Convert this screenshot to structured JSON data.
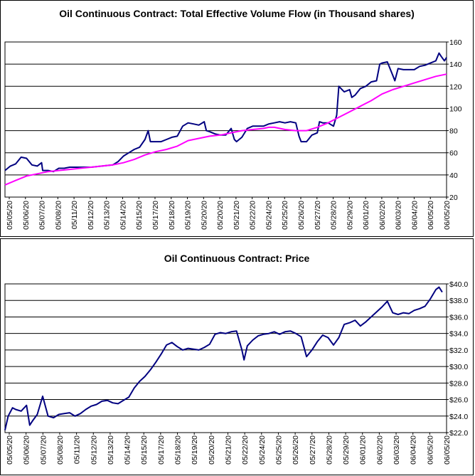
{
  "chart_data": [
    {
      "type": "line",
      "title": "Oil Continuous Contract: Total Effective Volume Flow (in Thousand shares)",
      "x_ticks": [
        "05/05/20",
        "05/06/20",
        "05/07/20",
        "05/08/20",
        "05/11/20",
        "05/12/20",
        "05/13/20",
        "05/14/20",
        "05/15/20",
        "05/17/20",
        "05/18/20",
        "05/19/20",
        "05/20/20",
        "05/20/20",
        "05/21/20",
        "05/22/20",
        "05/24/20",
        "05/25/20",
        "05/26/20",
        "05/27/20",
        "05/28/20",
        "05/29/20",
        "06/01/20",
        "06/02/20",
        "06/03/20",
        "06/04/20",
        "06/05/20",
        "06/05/20"
      ],
      "y_ticks": [
        "20",
        "40",
        "60",
        "80",
        "100",
        "120",
        "140",
        "160"
      ],
      "ylim": [
        20,
        160
      ],
      "grid": true,
      "series": [
        {
          "color": "#000080",
          "values": [
            [
              0,
              44
            ],
            [
              0.5,
              48
            ],
            [
              1,
              50
            ],
            [
              1.5,
              56
            ],
            [
              2,
              55
            ],
            [
              2.5,
              49
            ],
            [
              3,
              48
            ],
            [
              3.4,
              51
            ],
            [
              3.5,
              44
            ],
            [
              4,
              44
            ],
            [
              4.5,
              43
            ],
            [
              5,
              46
            ],
            [
              5.5,
              46
            ],
            [
              6,
              47
            ],
            [
              7,
              47
            ],
            [
              8,
              47
            ],
            [
              9,
              48
            ],
            [
              10,
              49
            ],
            [
              10.5,
              52
            ],
            [
              11,
              57
            ],
            [
              11.5,
              60
            ],
            [
              12,
              63
            ],
            [
              12.5,
              65
            ],
            [
              13,
              72
            ],
            [
              13.3,
              80
            ],
            [
              13.5,
              70
            ],
            [
              14,
              70
            ],
            [
              14.5,
              70
            ],
            [
              15,
              72
            ],
            [
              15.5,
              74
            ],
            [
              16,
              75
            ],
            [
              16.5,
              84
            ],
            [
              17,
              87
            ],
            [
              17.5,
              86
            ],
            [
              18,
              85
            ],
            [
              18.5,
              88
            ],
            [
              18.7,
              80
            ],
            [
              19,
              79
            ],
            [
              19.5,
              77
            ],
            [
              20,
              76
            ],
            [
              20.5,
              76
            ],
            [
              21,
              82
            ],
            [
              21.3,
              72
            ],
            [
              21.5,
              70
            ],
            [
              22,
              74
            ],
            [
              22.5,
              82
            ],
            [
              23,
              84
            ],
            [
              23.5,
              84
            ],
            [
              24,
              84
            ],
            [
              24.5,
              86
            ],
            [
              25,
              87
            ],
            [
              25.5,
              88
            ],
            [
              26,
              87
            ],
            [
              26.5,
              88
            ],
            [
              27,
              87
            ],
            [
              27.3,
              75
            ],
            [
              27.5,
              70
            ],
            [
              28,
              70
            ],
            [
              28.5,
              76
            ],
            [
              29,
              78
            ],
            [
              29.2,
              88
            ],
            [
              29.5,
              87
            ],
            [
              30,
              87
            ],
            [
              30.5,
              84
            ],
            [
              30.8,
              94
            ],
            [
              31,
              120
            ],
            [
              31.5,
              115
            ],
            [
              32,
              117
            ],
            [
              32.2,
              110
            ],
            [
              32.5,
              112
            ],
            [
              33,
              118
            ],
            [
              33.5,
              120
            ],
            [
              34,
              124
            ],
            [
              34.5,
              125
            ],
            [
              34.8,
              140
            ],
            [
              35,
              141
            ],
            [
              35.5,
              142
            ],
            [
              36,
              130
            ],
            [
              36.2,
              125
            ],
            [
              36.5,
              136
            ],
            [
              37,
              135
            ],
            [
              37.5,
              135
            ],
            [
              38,
              135
            ],
            [
              38.5,
              138
            ],
            [
              39,
              139
            ],
            [
              39.5,
              141
            ],
            [
              40,
              143
            ],
            [
              40.3,
              150
            ],
            [
              40.5,
              147
            ],
            [
              40.8,
              143
            ],
            [
              41,
              146
            ]
          ]
        },
        {
          "color": "#FF00FF",
          "values": [
            [
              0,
              31
            ],
            [
              1,
              35
            ],
            [
              2,
              39
            ],
            [
              3,
              41
            ],
            [
              4,
              43
            ],
            [
              5,
              44
            ],
            [
              6,
              45
            ],
            [
              7,
              46
            ],
            [
              8,
              47
            ],
            [
              9,
              48
            ],
            [
              10,
              49
            ],
            [
              11,
              51
            ],
            [
              12,
              54
            ],
            [
              13,
              58
            ],
            [
              14,
              61
            ],
            [
              15,
              63
            ],
            [
              16,
              66
            ],
            [
              17,
              71
            ],
            [
              18,
              73
            ],
            [
              19,
              75
            ],
            [
              20,
              76
            ],
            [
              21,
              78
            ],
            [
              22,
              80
            ],
            [
              23,
              81
            ],
            [
              24,
              82
            ],
            [
              24.5,
              83
            ],
            [
              25,
              83
            ],
            [
              26,
              81
            ],
            [
              27,
              80
            ],
            [
              28,
              80
            ],
            [
              29,
              83
            ],
            [
              30,
              87
            ],
            [
              31,
              92
            ],
            [
              32,
              97
            ],
            [
              33,
              102
            ],
            [
              34,
              107
            ],
            [
              35,
              113
            ],
            [
              36,
              117
            ],
            [
              37,
              120
            ],
            [
              38,
              123
            ],
            [
              39,
              126
            ],
            [
              40,
              129
            ],
            [
              41,
              131
            ]
          ]
        }
      ]
    },
    {
      "type": "line",
      "title": "Oil Continuous Contract: Price",
      "x_ticks": [
        "05/05/20",
        "05/06/20",
        "05/07/20",
        "05/08/20",
        "05/11/20",
        "05/12/20",
        "05/13/20",
        "05/14/20",
        "05/15/20",
        "05/17/20",
        "05/18/20",
        "05/19/20",
        "05/20/20",
        "05/21/20",
        "05/22/20",
        "05/24/20",
        "05/25/20",
        "05/26/20",
        "05/27/20",
        "05/28/20",
        "05/29/20",
        "06/01/20",
        "06/02/20",
        "06/03/20",
        "06/04/20",
        "06/05/20",
        "06/05/20"
      ],
      "y_ticks": [
        "$22.0",
        "$24.0",
        "$26.0",
        "$28.0",
        "$30.0",
        "$32.0",
        "$34.0",
        "$36.0",
        "$38.0",
        "$40.0"
      ],
      "ylim": [
        22,
        40
      ],
      "grid": true,
      "series": [
        {
          "color": "#000080",
          "values": [
            [
              0,
              22.3
            ],
            [
              0.3,
              24.0
            ],
            [
              0.7,
              25.0
            ],
            [
              1,
              24.8
            ],
            [
              1.5,
              24.6
            ],
            [
              2,
              25.3
            ],
            [
              2.3,
              22.9
            ],
            [
              2.6,
              23.5
            ],
            [
              3,
              24.2
            ],
            [
              3.5,
              26.4
            ],
            [
              4,
              24.0
            ],
            [
              4.5,
              23.8
            ],
            [
              5,
              24.2
            ],
            [
              5.5,
              24.3
            ],
            [
              6,
              24.4
            ],
            [
              6.5,
              24.0
            ],
            [
              7,
              24.3
            ],
            [
              7.5,
              24.8
            ],
            [
              8,
              25.2
            ],
            [
              8.5,
              25.4
            ],
            [
              9,
              25.8
            ],
            [
              9.5,
              25.9
            ],
            [
              10,
              25.6
            ],
            [
              10.5,
              25.5
            ],
            [
              11,
              25.9
            ],
            [
              11.5,
              26.3
            ],
            [
              12,
              27.4
            ],
            [
              12.5,
              28.2
            ],
            [
              13,
              28.8
            ],
            [
              13.5,
              29.6
            ],
            [
              14,
              30.5
            ],
            [
              14.5,
              31.5
            ],
            [
              15,
              32.6
            ],
            [
              15.5,
              32.9
            ],
            [
              16,
              32.4
            ],
            [
              16.5,
              32.0
            ],
            [
              17,
              32.2
            ],
            [
              17.5,
              32.1
            ],
            [
              18,
              32.0
            ],
            [
              18.5,
              32.3
            ],
            [
              19,
              32.7
            ],
            [
              19.5,
              33.9
            ],
            [
              20,
              34.1
            ],
            [
              20.5,
              34.0
            ],
            [
              21,
              34.2
            ],
            [
              21.5,
              34.3
            ],
            [
              22,
              32.0
            ],
            [
              22.2,
              30.8
            ],
            [
              22.5,
              32.5
            ],
            [
              23,
              33.2
            ],
            [
              23.5,
              33.7
            ],
            [
              24,
              33.9
            ],
            [
              24.5,
              34.0
            ],
            [
              25,
              34.2
            ],
            [
              25.5,
              33.9
            ],
            [
              26,
              34.2
            ],
            [
              26.5,
              34.3
            ],
            [
              27,
              34.0
            ],
            [
              27.5,
              33.6
            ],
            [
              28,
              31.2
            ],
            [
              28.5,
              32.0
            ],
            [
              29,
              33.0
            ],
            [
              29.5,
              33.8
            ],
            [
              30,
              33.5
            ],
            [
              30.5,
              32.6
            ],
            [
              31,
              33.5
            ],
            [
              31.5,
              35.1
            ],
            [
              32,
              35.3
            ],
            [
              32.5,
              35.6
            ],
            [
              33,
              34.9
            ],
            [
              33.5,
              35.4
            ],
            [
              34,
              36.0
            ],
            [
              34.5,
              36.6
            ],
            [
              35,
              37.2
            ],
            [
              35.5,
              37.9
            ],
            [
              36,
              36.5
            ],
            [
              36.5,
              36.3
            ],
            [
              37,
              36.5
            ],
            [
              37.5,
              36.4
            ],
            [
              38,
              36.8
            ],
            [
              38.5,
              37.0
            ],
            [
              39,
              37.3
            ],
            [
              39.5,
              38.2
            ],
            [
              40,
              39.3
            ],
            [
              40.3,
              39.6
            ],
            [
              40.6,
              39.0
            ]
          ]
        }
      ]
    }
  ]
}
